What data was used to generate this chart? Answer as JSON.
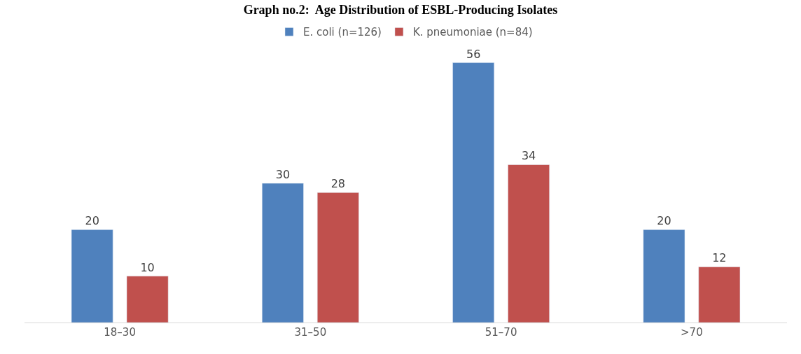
{
  "chart_data": {
    "type": "bar",
    "title": "Graph no.2:  Age Distribution of ESBL-Producing Isolates",
    "categories": [
      "18–30",
      "31–50",
      "51–70",
      ">70"
    ],
    "series": [
      {
        "name": "E. coli (n=126)",
        "color": "#4f81bd",
        "values": [
          20,
          30,
          56,
          20
        ]
      },
      {
        "name": "K. pneumoniae (n=84)",
        "color": "#c0504d",
        "values": [
          10,
          28,
          34,
          12
        ]
      }
    ],
    "data_labels": true,
    "legend": "top",
    "tick_labels": "x"
  }
}
